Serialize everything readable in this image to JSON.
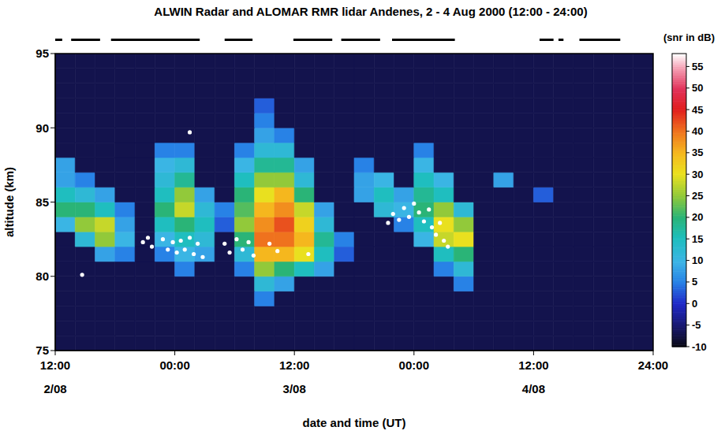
{
  "chart_data": {
    "type": "heatmap",
    "title": "ALWIN Radar  and ALOMAR RMR lidar  Andenes,  2 - 4  Aug  2000  (12:00 - 24:00)",
    "x_label": "date and time (UT)",
    "y_label": "altitude (km)",
    "xlim": [
      12,
      72
    ],
    "xticks": [
      {
        "value": 12,
        "label": "12:00"
      },
      {
        "value": 24,
        "label": "00:00"
      },
      {
        "value": 36,
        "label": "12:00"
      },
      {
        "value": 48,
        "label": "00:00"
      },
      {
        "value": 60,
        "label": "12:00"
      },
      {
        "value": 72,
        "label": "24:00"
      }
    ],
    "date_labels": [
      {
        "value": 12,
        "label": "2/08"
      },
      {
        "value": 36,
        "label": "3/08"
      },
      {
        "value": 60,
        "label": "4/08"
      }
    ],
    "ylim": [
      75,
      95
    ],
    "yticks": [
      75,
      80,
      85,
      90,
      95
    ],
    "x_edges": [
      12,
      14,
      16,
      18,
      20,
      22,
      24,
      26,
      28,
      30,
      32,
      34,
      36,
      38,
      40,
      42,
      44,
      46,
      48,
      50,
      52,
      54,
      56,
      58,
      60,
      62,
      64,
      66,
      68,
      70,
      72
    ],
    "y_edges": [
      75,
      76,
      77,
      78,
      79,
      80,
      81,
      82,
      83,
      84,
      85,
      86,
      87,
      88,
      89,
      90,
      91,
      92,
      93,
      94,
      95
    ],
    "cells": [
      [
        -7,
        -7,
        -7,
        -7,
        -7,
        -7,
        -7,
        -7,
        -7,
        -7,
        -7,
        -7,
        -7,
        -7,
        -7,
        -7,
        -7,
        -7,
        -7,
        -7,
        -7,
        -7,
        -7,
        -7,
        -7,
        -7,
        -7,
        -7,
        -7,
        -7
      ],
      [
        -7,
        -7,
        -7,
        -7,
        -7,
        -7,
        -7,
        -7,
        -7,
        -7,
        -7,
        -7,
        -7,
        -7,
        -7,
        -7,
        -7,
        -7,
        -7,
        -7,
        -7,
        -7,
        -7,
        -7,
        -7,
        -7,
        -7,
        -7,
        -7,
        -7
      ],
      [
        -7,
        -7,
        -7,
        -7,
        -7,
        -7,
        -7,
        -7,
        -7,
        -7,
        -7,
        -7,
        -7,
        -7,
        -7,
        -7,
        -7,
        -7,
        -7,
        -7,
        -7,
        -7,
        -7,
        -7,
        -7,
        -7,
        -7,
        -7,
        -7,
        -7
      ],
      [
        -7,
        -7,
        -7,
        -7,
        -7,
        -7,
        -7,
        -7,
        -7,
        -7,
        5,
        -7,
        -7,
        -7,
        -7,
        -7,
        -7,
        -7,
        -7,
        -7,
        -7,
        -7,
        -7,
        -7,
        -7,
        -7,
        -7,
        -7,
        -7,
        -7
      ],
      [
        -7,
        -7,
        -7,
        -7,
        -7,
        -7,
        -7,
        -7,
        -7,
        -7,
        12,
        8,
        -7,
        -7,
        -7,
        -7,
        -7,
        -7,
        -7,
        -7,
        5,
        -7,
        -7,
        -7,
        -7,
        -7,
        -7,
        -7,
        -7,
        -7
      ],
      [
        -7,
        -7,
        -7,
        -7,
        -7,
        -7,
        5,
        -7,
        -7,
        5,
        25,
        20,
        15,
        8,
        -7,
        -7,
        -7,
        -7,
        -7,
        5,
        12,
        -7,
        -7,
        -7,
        -7,
        -7,
        -7,
        -7,
        -7,
        -7
      ],
      [
        -7,
        -7,
        8,
        5,
        -7,
        5,
        10,
        8,
        -7,
        12,
        35,
        35,
        30,
        15,
        3,
        -7,
        -7,
        -7,
        -7,
        15,
        20,
        -7,
        -7,
        -7,
        -7,
        -7,
        -7,
        -7,
        -7,
        -7
      ],
      [
        -7,
        12,
        25,
        10,
        -7,
        10,
        15,
        12,
        -7,
        20,
        40,
        40,
        35,
        18,
        5,
        -7,
        -7,
        -7,
        10,
        28,
        30,
        -7,
        -7,
        -7,
        -7,
        -7,
        -7,
        -7,
        -7,
        -7
      ],
      [
        10,
        25,
        28,
        8,
        -7,
        15,
        20,
        15,
        3,
        25,
        38,
        42,
        32,
        12,
        -7,
        -7,
        -7,
        5,
        15,
        30,
        25,
        -7,
        -7,
        -7,
        -7,
        -7,
        -7,
        -7,
        -7,
        -7
      ],
      [
        20,
        20,
        15,
        5,
        -7,
        20,
        28,
        12,
        5,
        22,
        35,
        38,
        28,
        8,
        -7,
        -7,
        12,
        10,
        20,
        25,
        12,
        -7,
        -7,
        -7,
        -7,
        -7,
        -7,
        -7,
        -7,
        -7
      ],
      [
        15,
        12,
        8,
        -7,
        -7,
        15,
        25,
        8,
        -7,
        20,
        30,
        35,
        20,
        -7,
        -7,
        8,
        15,
        8,
        18,
        15,
        -7,
        -7,
        -7,
        -7,
        3,
        -7,
        -7,
        -7,
        -7,
        -7
      ],
      [
        8,
        5,
        -7,
        -7,
        -7,
        12,
        18,
        -7,
        -7,
        15,
        25,
        25,
        12,
        -7,
        -7,
        8,
        10,
        -7,
        15,
        10,
        -7,
        -7,
        8,
        -7,
        -7,
        -7,
        -7,
        -7,
        -7,
        -7
      ],
      [
        8,
        -7,
        -7,
        -7,
        -7,
        10,
        12,
        -7,
        -7,
        10,
        18,
        18,
        8,
        -7,
        -7,
        5,
        -7,
        -7,
        10,
        -7,
        -7,
        -7,
        -7,
        -7,
        -7,
        -7,
        -7,
        -7,
        -7,
        -7
      ],
      [
        -7,
        -7,
        -7,
        -7,
        -7,
        5,
        5,
        -7,
        -7,
        5,
        12,
        12,
        -7,
        -7,
        -7,
        -7,
        -7,
        -7,
        5,
        -7,
        -7,
        -7,
        -7,
        -7,
        -7,
        -7,
        -7,
        -7,
        -7,
        -7
      ],
      [
        -7,
        -7,
        -7,
        -7,
        -7,
        -7,
        -7,
        -7,
        -7,
        -7,
        8,
        5,
        -7,
        -7,
        -7,
        -7,
        -7,
        -7,
        -7,
        -7,
        -7,
        -7,
        -7,
        -7,
        -7,
        -7,
        -7,
        -7,
        -7,
        -7
      ],
      [
        -7,
        -7,
        -7,
        -7,
        -7,
        -7,
        -7,
        -7,
        -7,
        -7,
        5,
        -7,
        -7,
        -7,
        -7,
        -7,
        -7,
        -7,
        -7,
        -7,
        -7,
        -7,
        -7,
        -7,
        -7,
        -7,
        -7,
        -7,
        -7,
        -7
      ],
      [
        -7,
        -7,
        -7,
        -7,
        -7,
        -7,
        -7,
        -7,
        -7,
        -7,
        3,
        -7,
        -7,
        -7,
        -7,
        -7,
        -7,
        -7,
        -7,
        -7,
        -7,
        -7,
        -7,
        -7,
        -7,
        -7,
        -7,
        -7,
        -7,
        -7
      ],
      [
        -7,
        -7,
        -7,
        -7,
        -7,
        -7,
        -7,
        -7,
        -7,
        -7,
        -7,
        -7,
        -7,
        -7,
        -7,
        -7,
        -7,
        -7,
        -7,
        -7,
        -7,
        -7,
        -7,
        -7,
        -7,
        -7,
        -7,
        -7,
        -7,
        -7
      ],
      [
        -7,
        -7,
        -7,
        -7,
        -7,
        -7,
        -7,
        -7,
        -7,
        -7,
        -7,
        -7,
        -7,
        -7,
        -7,
        -7,
        -7,
        -7,
        -7,
        -7,
        -7,
        -7,
        -7,
        -7,
        -7,
        -7,
        -7,
        -7,
        -7,
        -7
      ],
      [
        -7,
        -7,
        -7,
        -7,
        -7,
        -7,
        -7,
        -7,
        -7,
        -7,
        -7,
        -7,
        -7,
        -7,
        -7,
        -7,
        -7,
        -7,
        -7,
        -7,
        -7,
        -7,
        -7,
        -7,
        -7,
        -7,
        -7,
        -7,
        -7,
        -7
      ]
    ],
    "colorbar": {
      "label": "(snr in dB)",
      "range": [
        -10,
        58
      ],
      "ticks": [
        -10,
        -5,
        0,
        5,
        10,
        15,
        20,
        25,
        30,
        35,
        40,
        45,
        50,
        55
      ]
    },
    "lidar_contours": {
      "color": "#ffffff",
      "points": [
        [
          20.8,
          82.3
        ],
        [
          21.3,
          82.6
        ],
        [
          21.7,
          82.0
        ],
        [
          22.8,
          82.5
        ],
        [
          23.3,
          81.8
        ],
        [
          23.8,
          82.3
        ],
        [
          24.2,
          81.6
        ],
        [
          24.6,
          82.4
        ],
        [
          25.0,
          81.8
        ],
        [
          25.5,
          82.6
        ],
        [
          25.9,
          81.5
        ],
        [
          26.3,
          82.2
        ],
        [
          26.8,
          81.3
        ],
        [
          25.5,
          89.7
        ],
        [
          14.7,
          80.1
        ],
        [
          29.0,
          82.2
        ],
        [
          29.5,
          81.6
        ],
        [
          30.2,
          82.5
        ],
        [
          30.8,
          81.8
        ],
        [
          31.4,
          82.3
        ],
        [
          31.9,
          81.4
        ],
        [
          33.5,
          82.2
        ],
        [
          34.3,
          81.7
        ],
        [
          37.4,
          81.5
        ],
        [
          45.4,
          83.6
        ],
        [
          45.9,
          84.2
        ],
        [
          46.5,
          83.8
        ],
        [
          47.0,
          84.6
        ],
        [
          47.5,
          84.0
        ],
        [
          48.0,
          84.9
        ],
        [
          48.5,
          84.3
        ],
        [
          49.0,
          83.7
        ],
        [
          49.5,
          84.5
        ],
        [
          49.8,
          83.3
        ],
        [
          50.2,
          82.8
        ],
        [
          50.6,
          83.6
        ],
        [
          51.0,
          82.4
        ],
        [
          51.4,
          82.0
        ]
      ]
    },
    "lidar_periods": [
      [
        12.0,
        12.7
      ],
      [
        13.6,
        16.5
      ],
      [
        17.6,
        26.5
      ],
      [
        29.0,
        31.8
      ],
      [
        35.9,
        39.8
      ],
      [
        40.7,
        44.6
      ],
      [
        45.8,
        52.1
      ],
      [
        60.6,
        62.0
      ],
      [
        62.5,
        63.0
      ],
      [
        64.6,
        68.7
      ]
    ]
  }
}
